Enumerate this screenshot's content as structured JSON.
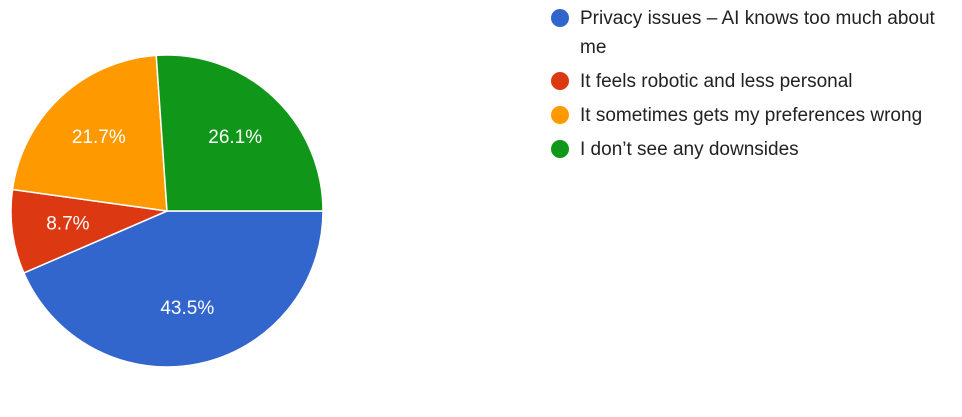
{
  "chart_data": {
    "type": "pie",
    "categories": [
      "Privacy issues – AI knows too much about me",
      "It feels robotic and less personal",
      "It sometimes gets my preferences wrong",
      "I don’t see any downsides"
    ],
    "values": [
      43.5,
      8.7,
      21.7,
      26.1
    ],
    "value_labels": [
      "43.5%",
      "8.7%",
      "21.7%",
      "26.1%"
    ],
    "colors": [
      "#3366cc",
      "#dc3912",
      "#ff9900",
      "#109618"
    ],
    "legend_position": "right",
    "start_angle": "3 o'clock, clockwise"
  }
}
